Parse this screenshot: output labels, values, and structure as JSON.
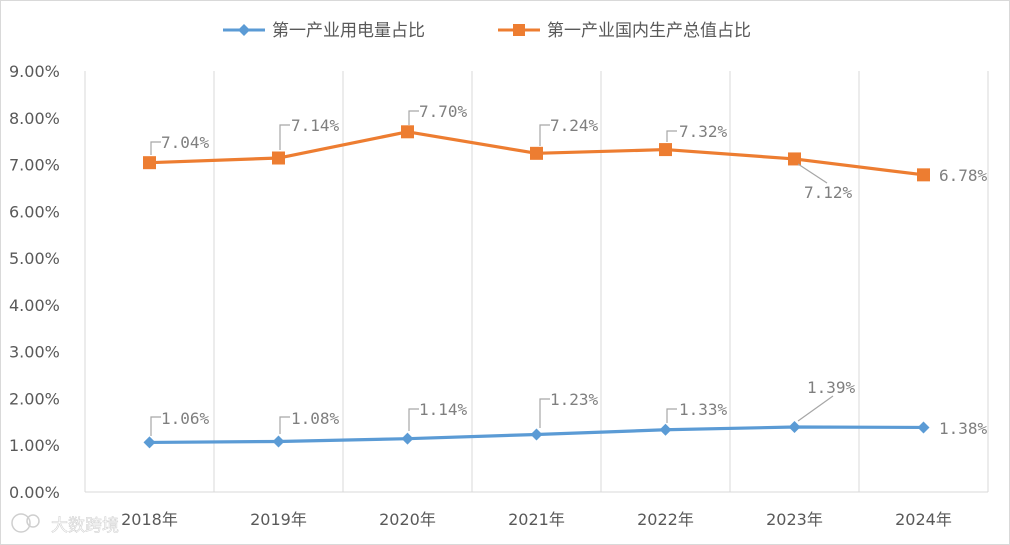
{
  "watermark": "大数跨境",
  "chart_data": {
    "type": "line",
    "categories": [
      "2018年",
      "2019年",
      "2020年",
      "2021年",
      "2022年",
      "2023年",
      "2024年"
    ],
    "y_ticks": [
      "0.00%",
      "1.00%",
      "2.00%",
      "3.00%",
      "4.00%",
      "5.00%",
      "6.00%",
      "7.00%",
      "8.00%",
      "9.00%"
    ],
    "ylim": [
      0,
      9
    ],
    "grid": "vertical",
    "legend_position": "top",
    "series": [
      {
        "name": "第一产业用电量占比",
        "color": "#5b9bd5",
        "marker": "diamond",
        "values": [
          1.06,
          1.08,
          1.14,
          1.23,
          1.33,
          1.39,
          1.38
        ],
        "labels": [
          "1.06%",
          "1.08%",
          "1.14%",
          "1.23%",
          "1.33%",
          "1.39%",
          "1.38%"
        ]
      },
      {
        "name": "第一产业国内生产总值占比",
        "color": "#ed7d31",
        "marker": "square",
        "values": [
          7.04,
          7.14,
          7.7,
          7.24,
          7.32,
          7.12,
          6.78
        ],
        "labels": [
          "7.04%",
          "7.14%",
          "7.70%",
          "7.24%",
          "7.32%",
          "7.12%",
          "6.78%"
        ]
      }
    ]
  }
}
